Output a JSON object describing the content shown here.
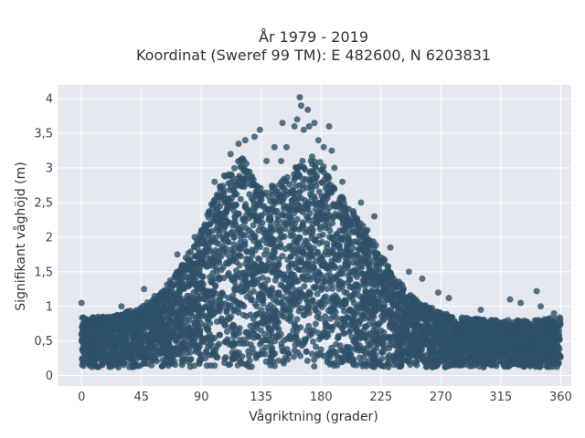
{
  "chart_data": {
    "type": "scatter",
    "title": "År 1979 - 2019",
    "subtitle": "Koordinat (Sweref 99 TM): E 482600, N 6203831",
    "xlabel": "Vågriktning (grader)",
    "ylabel": "Signifikant våghöjd (m)",
    "xlim": [
      -18,
      368
    ],
    "ylim": [
      -0.15,
      4.2
    ],
    "x_ticks": [
      0,
      45,
      90,
      135,
      180,
      225,
      270,
      315,
      360
    ],
    "x_tick_labels": [
      "0",
      "45",
      "90",
      "135",
      "180",
      "225",
      "270",
      "315",
      "360"
    ],
    "y_ticks": [
      0,
      0.5,
      1,
      1.5,
      2,
      2.5,
      3,
      3.5,
      4
    ],
    "y_tick_labels": [
      "0",
      "0,5",
      "1",
      "1,5",
      "2",
      "2,5",
      "3",
      "3,5",
      "4"
    ],
    "grid": true,
    "marker_color": "#2e5068",
    "plot_background": "#e5e8ef",
    "envelope_upper": [
      {
        "x": 0,
        "y": 0.85
      },
      {
        "x": 20,
        "y": 0.85
      },
      {
        "x": 45,
        "y": 1.0
      },
      {
        "x": 60,
        "y": 1.2
      },
      {
        "x": 75,
        "y": 1.6
      },
      {
        "x": 90,
        "y": 2.1
      },
      {
        "x": 100,
        "y": 2.6
      },
      {
        "x": 110,
        "y": 3.0
      },
      {
        "x": 120,
        "y": 3.2
      },
      {
        "x": 130,
        "y": 2.85
      },
      {
        "x": 140,
        "y": 2.7
      },
      {
        "x": 150,
        "y": 2.85
      },
      {
        "x": 160,
        "y": 3.0
      },
      {
        "x": 170,
        "y": 3.2
      },
      {
        "x": 180,
        "y": 3.1
      },
      {
        "x": 190,
        "y": 2.7
      },
      {
        "x": 200,
        "y": 2.5
      },
      {
        "x": 215,
        "y": 2.1
      },
      {
        "x": 230,
        "y": 1.6
      },
      {
        "x": 245,
        "y": 1.2
      },
      {
        "x": 260,
        "y": 1.0
      },
      {
        "x": 280,
        "y": 0.85
      },
      {
        "x": 310,
        "y": 0.8
      },
      {
        "x": 340,
        "y": 0.8
      },
      {
        "x": 360,
        "y": 0.85
      }
    ],
    "envelope_lower": 0.12,
    "outliers": [
      {
        "x": 0,
        "y": 1.05
      },
      {
        "x": 30,
        "y": 1.0
      },
      {
        "x": 47,
        "y": 1.25
      },
      {
        "x": 55,
        "y": 1.15
      },
      {
        "x": 72,
        "y": 1.75
      },
      {
        "x": 85,
        "y": 2.0
      },
      {
        "x": 100,
        "y": 2.8
      },
      {
        "x": 112,
        "y": 3.2
      },
      {
        "x": 118,
        "y": 3.35
      },
      {
        "x": 123,
        "y": 3.4
      },
      {
        "x": 130,
        "y": 3.45
      },
      {
        "x": 134,
        "y": 3.55
      },
      {
        "x": 139,
        "y": 3.1
      },
      {
        "x": 145,
        "y": 3.3
      },
      {
        "x": 150,
        "y": 3.1
      },
      {
        "x": 151,
        "y": 3.65
      },
      {
        "x": 154,
        "y": 3.3
      },
      {
        "x": 160,
        "y": 3.6
      },
      {
        "x": 162,
        "y": 3.7
      },
      {
        "x": 164,
        "y": 4.02
      },
      {
        "x": 165,
        "y": 3.9
      },
      {
        "x": 167,
        "y": 3.55
      },
      {
        "x": 170,
        "y": 3.84
      },
      {
        "x": 171,
        "y": 3.6
      },
      {
        "x": 175,
        "y": 3.65
      },
      {
        "x": 178,
        "y": 3.4
      },
      {
        "x": 182,
        "y": 3.3
      },
      {
        "x": 186,
        "y": 3.6
      },
      {
        "x": 188,
        "y": 3.25
      },
      {
        "x": 190,
        "y": 3.0
      },
      {
        "x": 196,
        "y": 2.8
      },
      {
        "x": 210,
        "y": 2.5
      },
      {
        "x": 220,
        "y": 2.3
      },
      {
        "x": 232,
        "y": 1.85
      },
      {
        "x": 246,
        "y": 1.5
      },
      {
        "x": 256,
        "y": 1.4
      },
      {
        "x": 268,
        "y": 1.2
      },
      {
        "x": 276,
        "y": 1.12
      },
      {
        "x": 300,
        "y": 0.95
      },
      {
        "x": 322,
        "y": 1.1
      },
      {
        "x": 330,
        "y": 1.05
      },
      {
        "x": 342,
        "y": 1.22
      },
      {
        "x": 345,
        "y": 1.0
      },
      {
        "x": 355,
        "y": 0.9
      }
    ]
  }
}
